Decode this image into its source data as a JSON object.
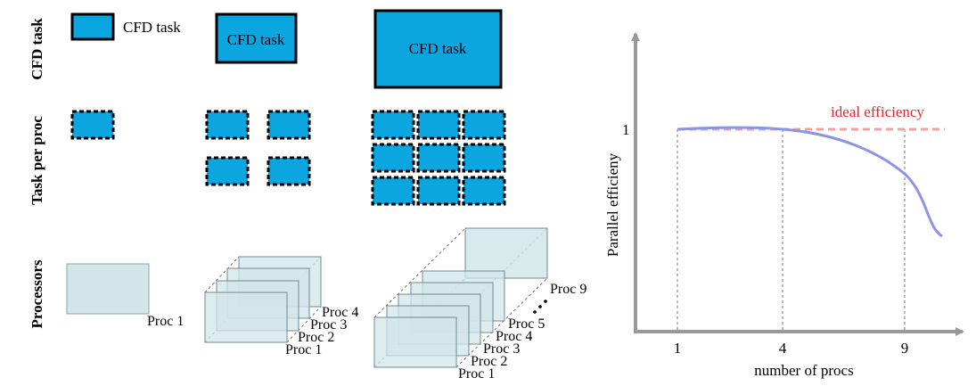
{
  "row_labels": {
    "cfd_task": "CFD task",
    "task_per_proc": "Task per proc",
    "processors": "Processors"
  },
  "tasks": {
    "small": "CFD task",
    "medium": "CFD task",
    "large": "CFD task"
  },
  "proc_labels": {
    "c1": {
      "p1": "Proc 1"
    },
    "c4": {
      "p1": "Proc 1",
      "p2": "Proc 2",
      "p3": "Proc 3",
      "p4": "Proc 4"
    },
    "c9": {
      "p1": "Proc 1",
      "p2": "Proc 2",
      "p3": "Proc 3",
      "p4": "Proc 4",
      "p5": "Proc 5",
      "p9": "Proc 9"
    }
  },
  "plot": {
    "ylabel": "Parallel efficieny",
    "xlabel": "number of procs",
    "ytick": "1",
    "xticks": [
      "1",
      "4",
      "9"
    ],
    "ideal_label": "ideal efficiency"
  },
  "colors": {
    "task_fill": "#0ba5e0",
    "proc_fill": "#d2e6ea",
    "proc_stroke": "#8aa5ab",
    "axis": "#999999",
    "ideal": "#f4a0a0",
    "ideal_text": "#e8262c",
    "curve": "#8c94e6"
  }
}
